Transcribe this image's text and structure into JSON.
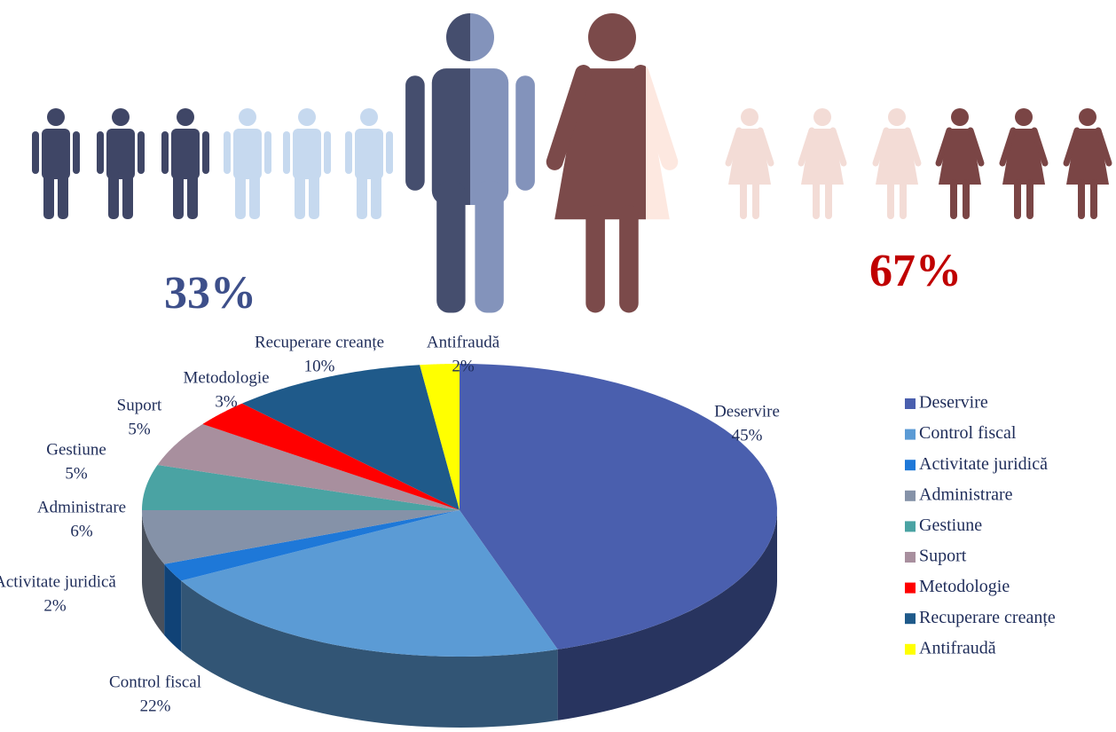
{
  "chart_data": [
    {
      "type": "pictogram",
      "values": [
        33,
        67
      ],
      "value_labels": [
        "33%",
        "67%"
      ],
      "colors": [
        "#3f4666",
        "#7a4545"
      ]
    },
    {
      "type": "pie3d",
      "categories": [
        "Deservire",
        "Control fiscal",
        "Activitate juridică",
        "Administrare",
        "Gestiune",
        "Suport",
        "Metodologie",
        "Recuperare creanțe",
        "Antifraudă"
      ],
      "values": [
        45,
        22,
        2,
        6,
        5,
        5,
        3,
        10,
        2
      ],
      "value_labels": [
        "45%",
        "22%",
        "2%",
        "6%",
        "5%",
        "5%",
        "3%",
        "10%",
        "2%"
      ],
      "colors": [
        "#4a5fae",
        "#5b9bd5",
        "#1e78d8",
        "#8592a8",
        "#4aa3a3",
        "#a88f9e",
        "#ff0000",
        "#1f5a8a",
        "#ffff00"
      ],
      "legend": "right"
    }
  ]
}
